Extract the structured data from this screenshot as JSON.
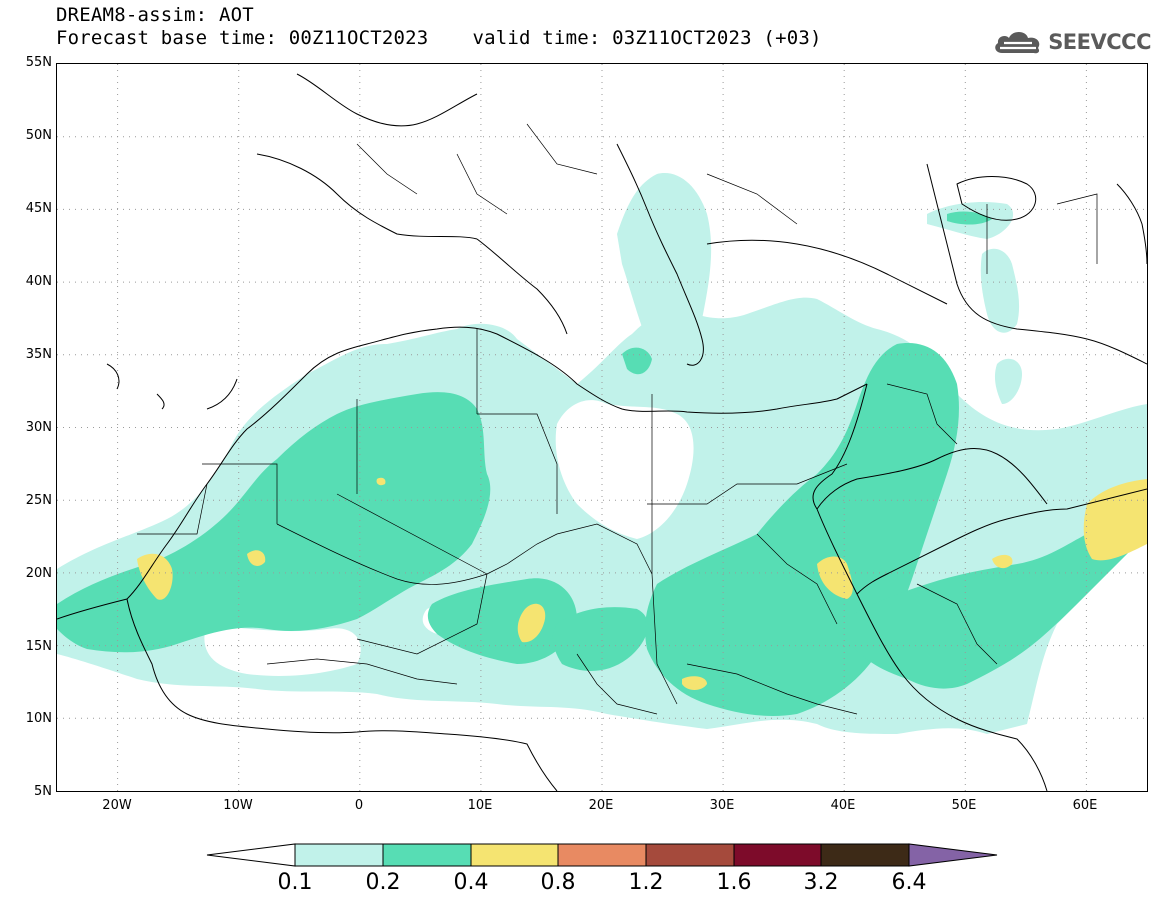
{
  "header": {
    "title": "DREAM8-assim: AOT",
    "base_time": "Forecast base time: 00Z11OCT2023",
    "valid_time": "valid time: 03Z11OCT2023 (+03)"
  },
  "logo": {
    "text": "SEEVCCC",
    "icon": "cloud-icon",
    "color": "#5a5a5a"
  },
  "map": {
    "lon_range": [
      -25,
      65
    ],
    "lat_range": [
      5,
      55
    ],
    "lat_labels": [
      "55N",
      "50N",
      "45N",
      "40N",
      "35N",
      "30N",
      "25N",
      "20N",
      "15N",
      "10N",
      "5N"
    ],
    "lon_labels": [
      "20W",
      "10W",
      "0",
      "10E",
      "20E",
      "30E",
      "40E",
      "50E",
      "60E"
    ],
    "grid": "dotted"
  },
  "colorbar": {
    "labels": [
      "0.1",
      "0.2",
      "0.4",
      "0.8",
      "1.2",
      "1.6",
      "3.2",
      "6.4"
    ],
    "colors": [
      "#ffffff",
      "#c1f2ea",
      "#57ddb4",
      "#f5e471",
      "#e88a62",
      "#a54a3c",
      "#7d0b2a",
      "#3d2a17",
      "#8463a6"
    ]
  }
}
